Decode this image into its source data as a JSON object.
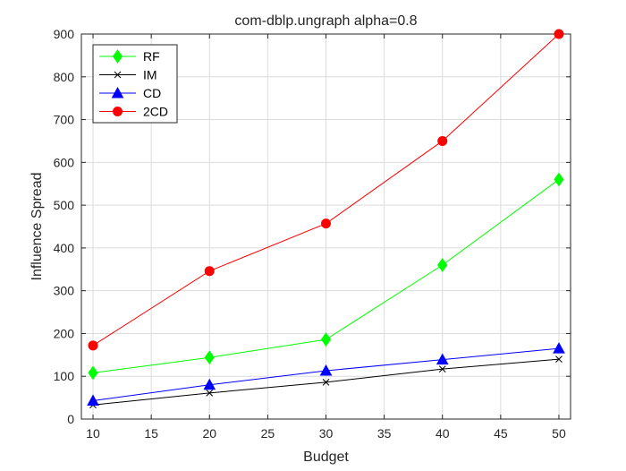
{
  "chart_data": {
    "type": "line",
    "title": "com-dblp.ungraph alpha=0.8",
    "xlabel": "Budget",
    "ylabel": "Influence Spread",
    "x": [
      10,
      20,
      30,
      40,
      50
    ],
    "xlim": [
      9,
      51
    ],
    "ylim": [
      0,
      900
    ],
    "xticks": [
      "10",
      "15",
      "20",
      "25",
      "30",
      "35",
      "40",
      "45",
      "50"
    ],
    "yticks": [
      "0",
      "100",
      "200",
      "300",
      "400",
      "500",
      "600",
      "700",
      "800",
      "900"
    ],
    "grid": true,
    "legend_position": "top-left",
    "series": [
      {
        "name": "RF",
        "values": [
          108,
          144,
          186,
          360,
          560
        ],
        "color": "#00ff00",
        "marker": "diamond"
      },
      {
        "name": "IM",
        "values": [
          33,
          61,
          86,
          117,
          140
        ],
        "color": "#000000",
        "marker": "x"
      },
      {
        "name": "CD",
        "values": [
          43,
          80,
          113,
          139,
          165
        ],
        "color": "#0000ff",
        "marker": "triangle"
      },
      {
        "name": "2CD",
        "values": [
          172,
          346,
          457,
          650,
          900
        ],
        "color": "#ff0000",
        "marker": "circle"
      }
    ]
  }
}
